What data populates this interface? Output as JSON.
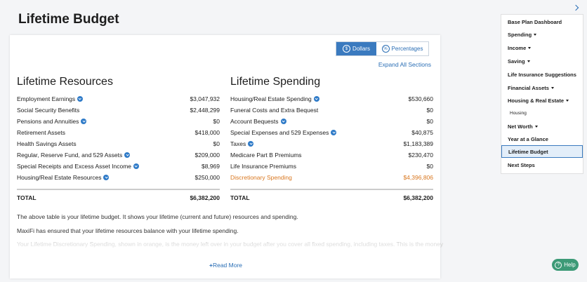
{
  "page": {
    "title": "Lifetime Budget",
    "toggle": [
      {
        "icon": "$",
        "label": "Dollars",
        "active": true
      },
      {
        "icon": "%",
        "label": "Percentages",
        "active": false
      }
    ],
    "expand_all": "Expand All Sections",
    "resources": {
      "heading": "Lifetime Resources",
      "rows": [
        {
          "label": "Employment Earnings",
          "value": "$3,047,932",
          "expandable": true
        },
        {
          "label": "Social Security Benefits",
          "value": "$2,448,299",
          "expandable": false
        },
        {
          "label": "Pensions and Annuities",
          "value": "$0",
          "expandable": true
        },
        {
          "label": "Retirement Assets",
          "value": "$418,000",
          "expandable": false
        },
        {
          "label": "Health Savings Assets",
          "value": "$0",
          "expandable": false
        },
        {
          "label": "Regular, Reserve Fund, and 529 Assets",
          "value": "$209,000",
          "expandable": true
        },
        {
          "label": "Special Receipts and Excess Asset Income",
          "value": "$8,969",
          "expandable": true
        },
        {
          "label": "Housing/Real Estate Resources",
          "value": "$250,000",
          "expandable": true
        }
      ],
      "total": {
        "label": "TOTAL",
        "value": "$6,382,200"
      }
    },
    "spending": {
      "heading": "Lifetime Spending",
      "rows": [
        {
          "label": "Housing/Real Estate Spending",
          "value": "$530,660",
          "expandable": true
        },
        {
          "label": "Funeral Costs and Extra Bequest",
          "value": "$0",
          "expandable": false
        },
        {
          "label": "Account Bequests",
          "value": "$0",
          "expandable": true
        },
        {
          "label": "Special Expenses and 529 Expenses",
          "value": "$40,875",
          "expandable": true
        },
        {
          "label": "Taxes",
          "value": "$1,183,389",
          "expandable": true
        },
        {
          "label": "Medicare Part B Premiums",
          "value": "$230,470",
          "expandable": false
        },
        {
          "label": "Life Insurance Premiums",
          "value": "$0",
          "expandable": false
        },
        {
          "label": "Discretionary Spending",
          "value": "$4,396,806",
          "expandable": false,
          "highlight": true
        }
      ],
      "total": {
        "label": "TOTAL",
        "value": "$6,382,200"
      }
    },
    "paragraphs": [
      "The above table is your lifetime budget. It shows your lifetime (current and future) resources and spending.",
      "MaxiFi has ensured that your lifetime resources balance with your lifetime spending.",
      "Your Lifetime Discretionary Spending, shown in orange, is the money left over in your budget after you cover all fixed spending, including taxes. This is the money"
    ],
    "read_more": "Read More",
    "nav": [
      {
        "label": "Base Plan Dashboard",
        "dropdown": false
      },
      {
        "label": "Spending",
        "dropdown": true
      },
      {
        "label": "Income",
        "dropdown": true
      },
      {
        "label": "Saving",
        "dropdown": true
      },
      {
        "label": "Life Insurance Suggestions",
        "dropdown": false
      },
      {
        "label": "Financial Assets",
        "dropdown": true
      },
      {
        "label": "Housing & Real Estate",
        "dropdown": true
      },
      {
        "label": "Housing",
        "dropdown": false,
        "sub": true
      },
      {
        "label": "Net Worth",
        "dropdown": true
      },
      {
        "label": "Year at a Glance",
        "dropdown": false
      },
      {
        "label": "Lifetime Budget",
        "dropdown": false,
        "active": true
      },
      {
        "label": "Next Steps",
        "dropdown": false
      }
    ],
    "help": "Help"
  }
}
